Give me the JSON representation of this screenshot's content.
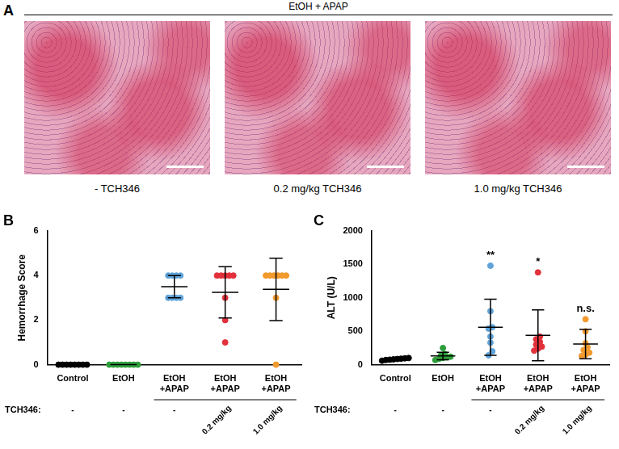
{
  "panel_a": {
    "label": "A",
    "title": "EtOH + APAP",
    "captions": [
      "- TCH346",
      "0.2 mg/kg TCH346",
      "1.0 mg/kg TCH346"
    ]
  },
  "chart_data": [
    {
      "type": "scatter",
      "panel": "B",
      "y_label": "Hemorrhage Score",
      "categories": [
        "Control",
        "EtOH",
        "EtOH +APAP",
        "EtOH +APAP",
        "EtOH +APAP"
      ],
      "colors": [
        "#000000",
        "#2e9e3a",
        "#5fa3d9",
        "#e2313b",
        "#f29a2e"
      ],
      "points": [
        [
          0,
          0,
          0,
          0,
          0,
          0,
          0,
          0
        ],
        [
          0,
          0,
          0,
          0,
          0,
          0,
          0,
          0
        ],
        [
          4,
          4,
          4,
          4,
          3,
          3,
          3,
          3
        ],
        [
          4,
          4,
          4,
          4,
          4,
          3,
          2,
          1
        ],
        [
          4,
          4,
          4,
          4,
          4,
          4,
          3,
          0
        ]
      ],
      "means": [
        0,
        0,
        3.5,
        3.25,
        3.38
      ],
      "sd": [
        0,
        0,
        0.5,
        1.15,
        1.4
      ],
      "treatment": {
        "label": "TCH346:",
        "values": [
          "-",
          "-",
          "-",
          "0.2 mg/kg",
          "1.0 mg/kg"
        ]
      },
      "ylim": [
        0,
        6
      ],
      "yticks": [
        0,
        2,
        4,
        6
      ],
      "grid": false
    },
    {
      "type": "scatter",
      "panel": "C",
      "y_label": "ALT (U/L)",
      "categories": [
        "Control",
        "EtOH",
        "EtOH +APAP",
        "EtOH +APAP",
        "EtOH +APAP"
      ],
      "colors": [
        "#000000",
        "#2e9e3a",
        "#5fa3d9",
        "#e2313b",
        "#f29a2e"
      ],
      "points": [
        [
          60,
          70,
          75,
          80,
          85,
          90,
          95,
          100
        ],
        [
          70,
          90,
          100,
          110,
          120,
          140,
          160,
          250
        ],
        [
          1480,
          800,
          560,
          540,
          420,
          330,
          200,
          140
        ],
        [
          1380,
          420,
          380,
          340,
          300,
          270,
          240,
          210
        ],
        [
          680,
          500,
          320,
          260,
          220,
          180,
          150,
          130
        ]
      ],
      "means": [
        80,
        130,
        560,
        440,
        310
      ],
      "sd": [
        12,
        55,
        420,
        380,
        220
      ],
      "annotations": [
        null,
        null,
        "**",
        "*",
        "n.s."
      ],
      "treatment": {
        "label": "TCH346:",
        "values": [
          "-",
          "-",
          "-",
          "0.2 mg/kg",
          "1.0 mg/kg"
        ]
      },
      "ylim": [
        0,
        2000
      ],
      "yticks": [
        0,
        500,
        1000,
        1500,
        2000
      ],
      "grid": false
    }
  ]
}
